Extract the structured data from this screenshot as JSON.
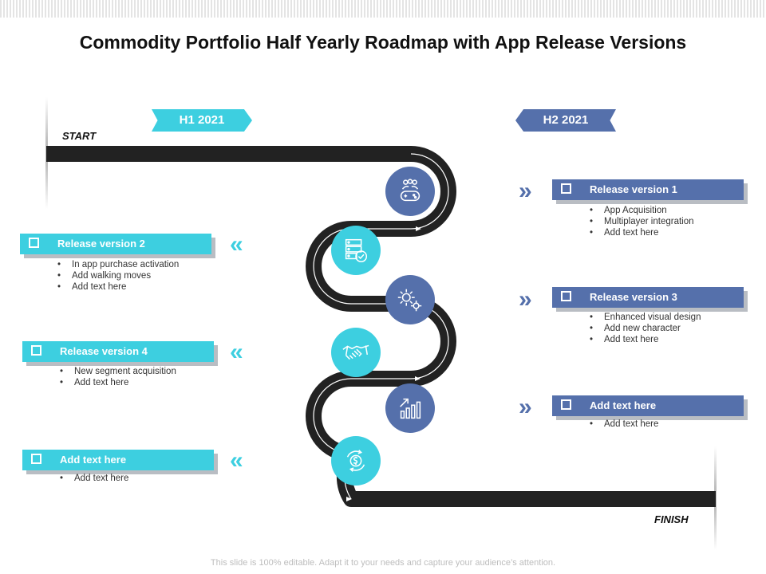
{
  "title": "Commodity Portfolio Half Yearly Roadmap with App Release Versions",
  "footer": "This slide is 100% editable. Adapt it to your needs and capture your audience’s attention.",
  "markers": {
    "start": "START",
    "finish": "FINISH"
  },
  "halves": {
    "h1": "H1 2021",
    "h2": "H2 2021"
  },
  "colors": {
    "cyan": "#3dcfe0",
    "blue": "#5570ab",
    "road": "#222222"
  },
  "left_items": [
    {
      "title": "Release version 2",
      "bullets": [
        "In app purchase activation",
        "Add walking moves",
        "Add text here"
      ]
    },
    {
      "title": "Release version 4",
      "bullets": [
        "New segment acquisition",
        "Add text here"
      ]
    },
    {
      "title": "Add text here",
      "bullets": [
        "Add text here"
      ]
    }
  ],
  "right_items": [
    {
      "title": "Release version 1",
      "bullets": [
        "App Acquisition",
        "Multiplayer integration",
        "Add text here"
      ]
    },
    {
      "title": "Release version 3",
      "bullets": [
        "Enhanced visual design",
        "Add new character",
        "Add text here"
      ]
    },
    {
      "title": "Add text here",
      "bullets": [
        "Add text here"
      ]
    }
  ],
  "chevrons": {
    "left": "«",
    "right": "»"
  },
  "icons": [
    "gamepad-team-icon",
    "server-check-icon",
    "gears-icon",
    "handshake-icon",
    "growth-chart-icon",
    "dollar-cycle-icon"
  ]
}
